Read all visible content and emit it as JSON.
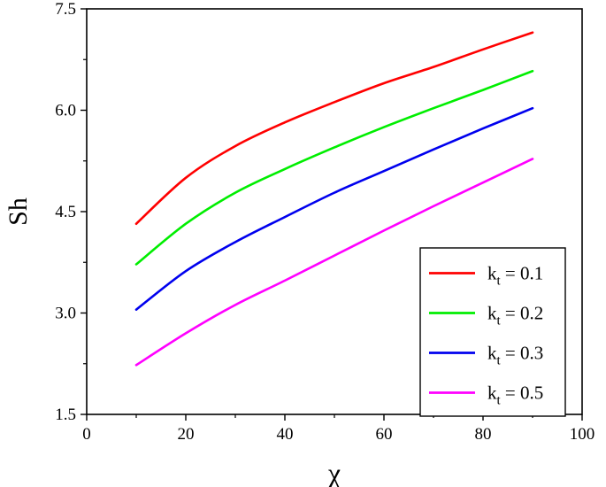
{
  "chart_data": {
    "type": "line",
    "xlabel": "χ",
    "ylabel": "Sh",
    "xlim": [
      0,
      100
    ],
    "ylim": [
      1.5,
      7.5
    ],
    "x_major_ticks": [
      0,
      20,
      40,
      60,
      80,
      100
    ],
    "y_major_ticks": [
      1.5,
      3.0,
      4.5,
      6.0,
      7.5
    ],
    "x_tick_labels": [
      "0",
      "20",
      "40",
      "60",
      "80",
      "100"
    ],
    "y_tick_labels": [
      "1.5",
      "3.0",
      "4.5",
      "6.0",
      "7.5"
    ],
    "grid": false,
    "legend_position": "bottom-right",
    "series": [
      {
        "name": "k_t = 0.1",
        "legend_main": "k",
        "legend_sub": "t",
        "legend_value": " = 0.1",
        "color": "#ff0000",
        "x": [
          10,
          20,
          30,
          40,
          50,
          60,
          70,
          80,
          90
        ],
        "y": [
          4.32,
          5.0,
          5.47,
          5.82,
          6.12,
          6.4,
          6.64,
          6.9,
          7.15
        ]
      },
      {
        "name": "k_t = 0.2",
        "legend_main": "k",
        "legend_sub": "t",
        "legend_value": " = 0.2",
        "color": "#00ee00",
        "x": [
          10,
          20,
          30,
          40,
          50,
          60,
          70,
          80,
          90
        ],
        "y": [
          3.72,
          4.32,
          4.78,
          5.13,
          5.45,
          5.75,
          6.03,
          6.3,
          6.58
        ]
      },
      {
        "name": "k_t = 0.3",
        "legend_main": "k",
        "legend_sub": "t",
        "legend_value": " = 0.3",
        "color": "#0000ee",
        "x": [
          10,
          20,
          30,
          40,
          50,
          60,
          70,
          80,
          90
        ],
        "y": [
          3.05,
          3.62,
          4.05,
          4.42,
          4.78,
          5.1,
          5.42,
          5.73,
          6.03
        ]
      },
      {
        "name": "k_t = 0.5",
        "legend_main": "k",
        "legend_sub": "t",
        "legend_value": " = 0.5",
        "color": "#ff00ff",
        "x": [
          10,
          20,
          30,
          40,
          50,
          60,
          70,
          80,
          90
        ],
        "y": [
          2.23,
          2.7,
          3.12,
          3.48,
          3.85,
          4.22,
          4.58,
          4.93,
          5.28
        ]
      }
    ]
  }
}
